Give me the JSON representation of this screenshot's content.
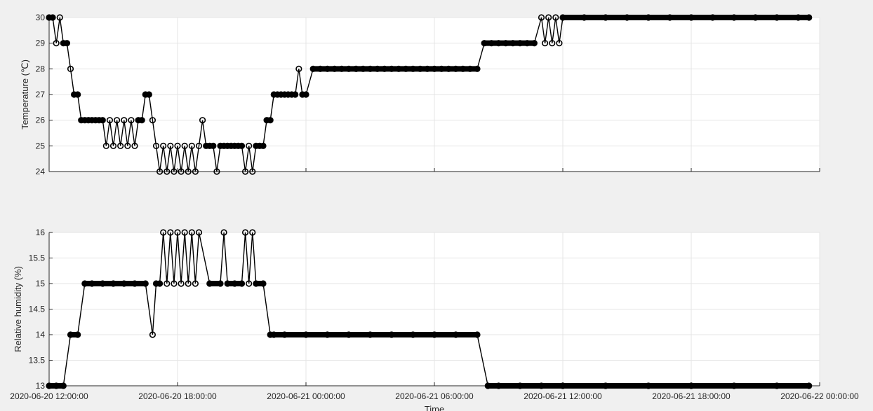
{
  "chart_data": [
    {
      "type": "line",
      "ylabel": "Temperature (℃)",
      "xlim": [
        "2020-06-20 12:00:00",
        "2020-06-22 00:00:00"
      ],
      "ylim": [
        24,
        30
      ],
      "yticks": [
        "24",
        "25",
        "26",
        "27",
        "28",
        "29",
        "30"
      ],
      "grid": true,
      "series": [
        {
          "marker": "circle",
          "x": [
            "2020-06-20 12:00",
            "2020-06-20 12:10",
            "2020-06-20 12:20",
            "2020-06-20 12:30",
            "2020-06-20 12:40",
            "2020-06-20 12:50",
            "2020-06-20 13:00",
            "2020-06-20 13:10",
            "2020-06-20 13:20",
            "2020-06-20 13:30",
            "2020-06-20 13:40",
            "2020-06-20 13:50",
            "2020-06-20 14:00",
            "2020-06-20 14:10",
            "2020-06-20 14:20",
            "2020-06-20 14:30",
            "2020-06-20 14:40",
            "2020-06-20 14:50",
            "2020-06-20 15:00",
            "2020-06-20 15:10",
            "2020-06-20 15:20",
            "2020-06-20 15:30",
            "2020-06-20 15:40",
            "2020-06-20 15:50",
            "2020-06-20 16:00",
            "2020-06-20 16:10",
            "2020-06-20 16:20",
            "2020-06-20 16:30",
            "2020-06-20 16:40",
            "2020-06-20 16:50",
            "2020-06-20 17:00",
            "2020-06-20 17:10",
            "2020-06-20 17:20",
            "2020-06-20 17:30",
            "2020-06-20 17:40",
            "2020-06-20 17:50",
            "2020-06-20 18:00",
            "2020-06-20 18:10",
            "2020-06-20 18:20",
            "2020-06-20 18:30",
            "2020-06-20 18:40",
            "2020-06-20 18:50",
            "2020-06-20 19:00",
            "2020-06-20 19:10",
            "2020-06-20 19:20",
            "2020-06-20 19:30",
            "2020-06-20 19:40",
            "2020-06-20 19:50",
            "2020-06-20 20:00",
            "2020-06-20 20:10",
            "2020-06-20 20:20",
            "2020-06-20 20:30",
            "2020-06-20 20:40",
            "2020-06-20 20:50",
            "2020-06-20 21:00",
            "2020-06-20 21:10",
            "2020-06-20 21:20",
            "2020-06-20 21:30",
            "2020-06-20 21:40",
            "2020-06-20 21:50",
            "2020-06-20 22:00",
            "2020-06-20 22:10",
            "2020-06-20 22:20",
            "2020-06-20 22:30",
            "2020-06-20 22:40",
            "2020-06-20 22:50",
            "2020-06-20 23:00",
            "2020-06-20 23:10",
            "2020-06-20 23:20",
            "2020-06-20 23:30",
            "2020-06-20 23:40",
            "2020-06-20 23:50",
            "2020-06-21 00:00",
            "2020-06-21 00:20",
            "2020-06-21 00:40",
            "2020-06-21 01:00",
            "2020-06-21 01:20",
            "2020-06-21 01:40",
            "2020-06-21 02:00",
            "2020-06-21 02:20",
            "2020-06-21 02:40",
            "2020-06-21 03:00",
            "2020-06-21 03:20",
            "2020-06-21 03:40",
            "2020-06-21 04:00",
            "2020-06-21 04:20",
            "2020-06-21 04:40",
            "2020-06-21 05:00",
            "2020-06-21 05:20",
            "2020-06-21 05:40",
            "2020-06-21 06:00",
            "2020-06-21 06:20",
            "2020-06-21 06:40",
            "2020-06-21 07:00",
            "2020-06-21 07:20",
            "2020-06-21 07:40",
            "2020-06-21 08:00",
            "2020-06-21 08:20",
            "2020-06-21 08:40",
            "2020-06-21 09:00",
            "2020-06-21 09:20",
            "2020-06-21 09:40",
            "2020-06-21 10:00",
            "2020-06-21 10:20",
            "2020-06-21 10:40",
            "2020-06-21 11:00",
            "2020-06-21 11:10",
            "2020-06-21 11:20",
            "2020-06-21 11:30",
            "2020-06-21 11:40",
            "2020-06-21 11:50",
            "2020-06-21 12:00",
            "2020-06-21 13:00",
            "2020-06-21 14:00",
            "2020-06-21 15:00",
            "2020-06-21 16:00",
            "2020-06-21 17:00",
            "2020-06-21 18:00",
            "2020-06-21 19:00",
            "2020-06-21 20:00",
            "2020-06-21 21:00",
            "2020-06-21 22:00",
            "2020-06-21 23:00",
            "2020-06-21 23:30"
          ],
          "y": [
            30,
            30,
            29,
            30,
            29,
            29,
            28,
            27,
            27,
            26,
            26,
            26,
            26,
            26,
            26,
            26,
            25,
            26,
            25,
            26,
            25,
            26,
            25,
            26,
            25,
            26,
            26,
            27,
            27,
            26,
            25,
            24,
            25,
            24,
            25,
            24,
            25,
            24,
            25,
            24,
            25,
            24,
            25,
            26,
            25,
            25,
            25,
            24,
            25,
            25,
            25,
            25,
            25,
            25,
            25,
            24,
            25,
            24,
            25,
            25,
            25,
            26,
            26,
            27,
            27,
            27,
            27,
            27,
            27,
            27,
            28,
            27,
            27,
            28,
            28,
            28,
            28,
            28,
            28,
            28,
            28,
            28,
            28,
            28,
            28,
            28,
            28,
            28,
            28,
            28,
            28,
            28,
            28,
            28,
            28,
            28,
            28,
            29,
            29,
            29,
            29,
            29,
            29,
            29,
            29,
            30,
            29,
            30,
            29,
            30,
            29,
            30,
            30,
            30,
            30,
            30,
            30,
            30,
            30,
            30,
            30,
            30,
            30,
            30
          ]
        }
      ]
    },
    {
      "type": "line",
      "xlabel": "Time",
      "ylabel": "Relative humidity (%)",
      "xlim": [
        "2020-06-20 12:00:00",
        "2020-06-22 00:00:00"
      ],
      "ylim": [
        13,
        16
      ],
      "yticks": [
        "13",
        "13.5",
        "14",
        "14.5",
        "15",
        "15.5",
        "16"
      ],
      "xticks": [
        "2020-06-20 12:00:00",
        "2020-06-20 18:00:00",
        "2020-06-21 00:00:00",
        "2020-06-21 06:00:00",
        "2020-06-21 12:00:00",
        "2020-06-21 18:00:00",
        "2020-06-22 00:00:00"
      ],
      "grid": true,
      "series": [
        {
          "marker": "circle",
          "x": [
            "2020-06-20 12:00",
            "2020-06-20 12:20",
            "2020-06-20 12:40",
            "2020-06-20 13:00",
            "2020-06-20 13:20",
            "2020-06-20 13:40",
            "2020-06-20 14:00",
            "2020-06-20 14:30",
            "2020-06-20 15:00",
            "2020-06-20 15:30",
            "2020-06-20 16:00",
            "2020-06-20 16:30",
            "2020-06-20 16:50",
            "2020-06-20 17:00",
            "2020-06-20 17:10",
            "2020-06-20 17:20",
            "2020-06-20 17:30",
            "2020-06-20 17:40",
            "2020-06-20 17:50",
            "2020-06-20 18:00",
            "2020-06-20 18:10",
            "2020-06-20 18:20",
            "2020-06-20 18:30",
            "2020-06-20 18:40",
            "2020-06-20 18:50",
            "2020-06-20 19:00",
            "2020-06-20 19:30",
            "2020-06-20 20:00",
            "2020-06-20 20:10",
            "2020-06-20 20:20",
            "2020-06-20 20:40",
            "2020-06-20 21:00",
            "2020-06-20 21:10",
            "2020-06-20 21:20",
            "2020-06-20 21:30",
            "2020-06-20 21:40",
            "2020-06-20 22:00",
            "2020-06-20 22:20",
            "2020-06-20 22:30",
            "2020-06-20 23:00",
            "2020-06-21 00:00",
            "2020-06-21 01:00",
            "2020-06-21 02:00",
            "2020-06-21 03:00",
            "2020-06-21 04:00",
            "2020-06-21 05:00",
            "2020-06-21 06:00",
            "2020-06-21 07:00",
            "2020-06-21 08:00",
            "2020-06-21 08:30",
            "2020-06-21 09:00",
            "2020-06-21 10:00",
            "2020-06-21 11:00",
            "2020-06-21 12:00",
            "2020-06-21 14:00",
            "2020-06-21 16:00",
            "2020-06-21 18:00",
            "2020-06-21 20:00",
            "2020-06-21 22:00",
            "2020-06-21 23:30"
          ],
          "y": [
            13,
            13,
            13,
            14,
            14,
            15,
            15,
            15,
            15,
            15,
            15,
            15,
            14,
            15,
            15,
            16,
            15,
            16,
            15,
            16,
            15,
            16,
            15,
            16,
            15,
            16,
            15,
            15,
            16,
            15,
            15,
            15,
            16,
            15,
            16,
            15,
            15,
            14,
            14,
            14,
            14,
            14,
            14,
            14,
            14,
            14,
            14,
            14,
            14,
            13,
            13,
            13,
            13,
            13,
            13,
            13,
            13,
            13,
            13,
            13
          ]
        }
      ]
    }
  ]
}
